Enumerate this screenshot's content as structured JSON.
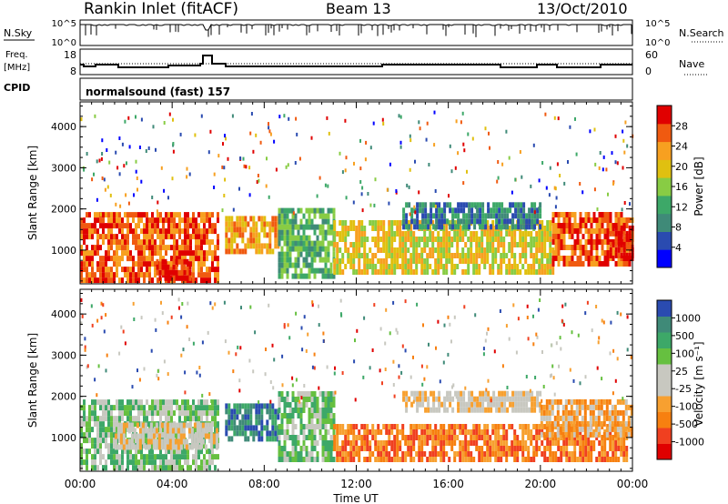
{
  "header": {
    "title": "Rankin Inlet (fitACF)",
    "beam": "Beam 13",
    "date": "13/Oct/2010"
  },
  "panels": {
    "nsky": {
      "label": "N.Sky",
      "right_label": "N.Search",
      "left_ticks": [
        "10^5",
        "10^0"
      ],
      "right_ticks": [
        "10^5",
        "10^0"
      ]
    },
    "freq": {
      "label_top": "Freq.",
      "label_unit": "[MHz]",
      "right_label": "Nave",
      "left_ticks": [
        "18",
        "8"
      ],
      "right_ticks": [
        "60",
        "0"
      ]
    },
    "cpid": {
      "label": "CPID",
      "program": "normalsound (fast) 157"
    }
  },
  "chart_data": [
    {
      "type": "heatmap",
      "name": "power",
      "xlabel": "Time UT",
      "ylabel": "Slant Range [km]",
      "xlim": [
        0,
        24
      ],
      "ylim": [
        180,
        4600
      ],
      "x_ticks": [
        "00:00",
        "04:00",
        "08:00",
        "12:00",
        "16:00",
        "20:00",
        "00:00"
      ],
      "y_ticks": [
        1000,
        2000,
        3000,
        4000
      ],
      "colorbar": {
        "label": "Power [dB]",
        "ticks": [
          "28",
          "24",
          "20",
          "16",
          "12",
          "8",
          "4"
        ],
        "colors": [
          "#0000ff",
          "#2a4bb0",
          "#3f8a78",
          "#3da868",
          "#88cc44",
          "#e0c010",
          "#f7a020",
          "#f05a10",
          "#e00000"
        ]
      },
      "echo_regions": [
        {
          "t0": 0.0,
          "t1": 6.0,
          "r0": 200,
          "r1": 1800,
          "level": 7
        },
        {
          "t0": 3.3,
          "t1": 4.8,
          "r0": 250,
          "r1": 700,
          "level": 8
        },
        {
          "t0": 6.3,
          "t1": 8.6,
          "r0": 900,
          "r1": 1700,
          "level": 6
        },
        {
          "t0": 8.6,
          "t1": 11.0,
          "r0": 300,
          "r1": 2000,
          "level": 3
        },
        {
          "t0": 11.0,
          "t1": 20.5,
          "r0": 400,
          "r1": 1600,
          "level": 5
        },
        {
          "t0": 14.0,
          "t1": 20.0,
          "r0": 1500,
          "r1": 2100,
          "level": 2
        },
        {
          "t0": 20.5,
          "t1": 24.0,
          "r0": 600,
          "r1": 1800,
          "level": 7
        },
        {
          "t0": 23.0,
          "t1": 24.0,
          "r0": 800,
          "r1": 1500,
          "level": 8
        }
      ]
    },
    {
      "type": "heatmap",
      "name": "velocity",
      "xlabel": "Time UT",
      "ylabel": "Slant Range [km]",
      "xlim": [
        0,
        24
      ],
      "ylim": [
        180,
        4600
      ],
      "x_ticks": [
        "00:00",
        "04:00",
        "08:00",
        "12:00",
        "16:00",
        "20:00",
        "00:00"
      ],
      "y_ticks": [
        1000,
        2000,
        3000,
        4000
      ],
      "colorbar": {
        "label": "Velocity [m s⁻¹]",
        "ticks": [
          "1000",
          "500",
          "100",
          "25",
          "-25",
          "-100",
          "-500",
          "-1000"
        ],
        "colors": [
          "#e00000",
          "#f04020",
          "#f78010",
          "#f7a030",
          "#c8c8c0",
          "#c8c8c0",
          "#66c040",
          "#3da868",
          "#3f8a78",
          "#2a4bb0"
        ]
      },
      "echo_regions": [
        {
          "t0": 0.0,
          "t1": 6.0,
          "r0": 200,
          "r1": 1800,
          "level": 6
        },
        {
          "t0": 1.5,
          "t1": 6.0,
          "r0": 700,
          "r1": 1300,
          "level": 4
        },
        {
          "t0": 6.3,
          "t1": 8.6,
          "r0": 900,
          "r1": 1700,
          "level": 8
        },
        {
          "t0": 8.6,
          "t1": 11.0,
          "r0": 400,
          "r1": 2000,
          "level": 6
        },
        {
          "t0": 11.0,
          "t1": 23.8,
          "r0": 400,
          "r1": 1300,
          "level": 2
        },
        {
          "t0": 14.0,
          "t1": 20.0,
          "r0": 1600,
          "r1": 2100,
          "level": 4
        },
        {
          "t0": 20.0,
          "t1": 24.0,
          "r0": 1000,
          "r1": 1800,
          "level": 3
        }
      ]
    }
  ]
}
